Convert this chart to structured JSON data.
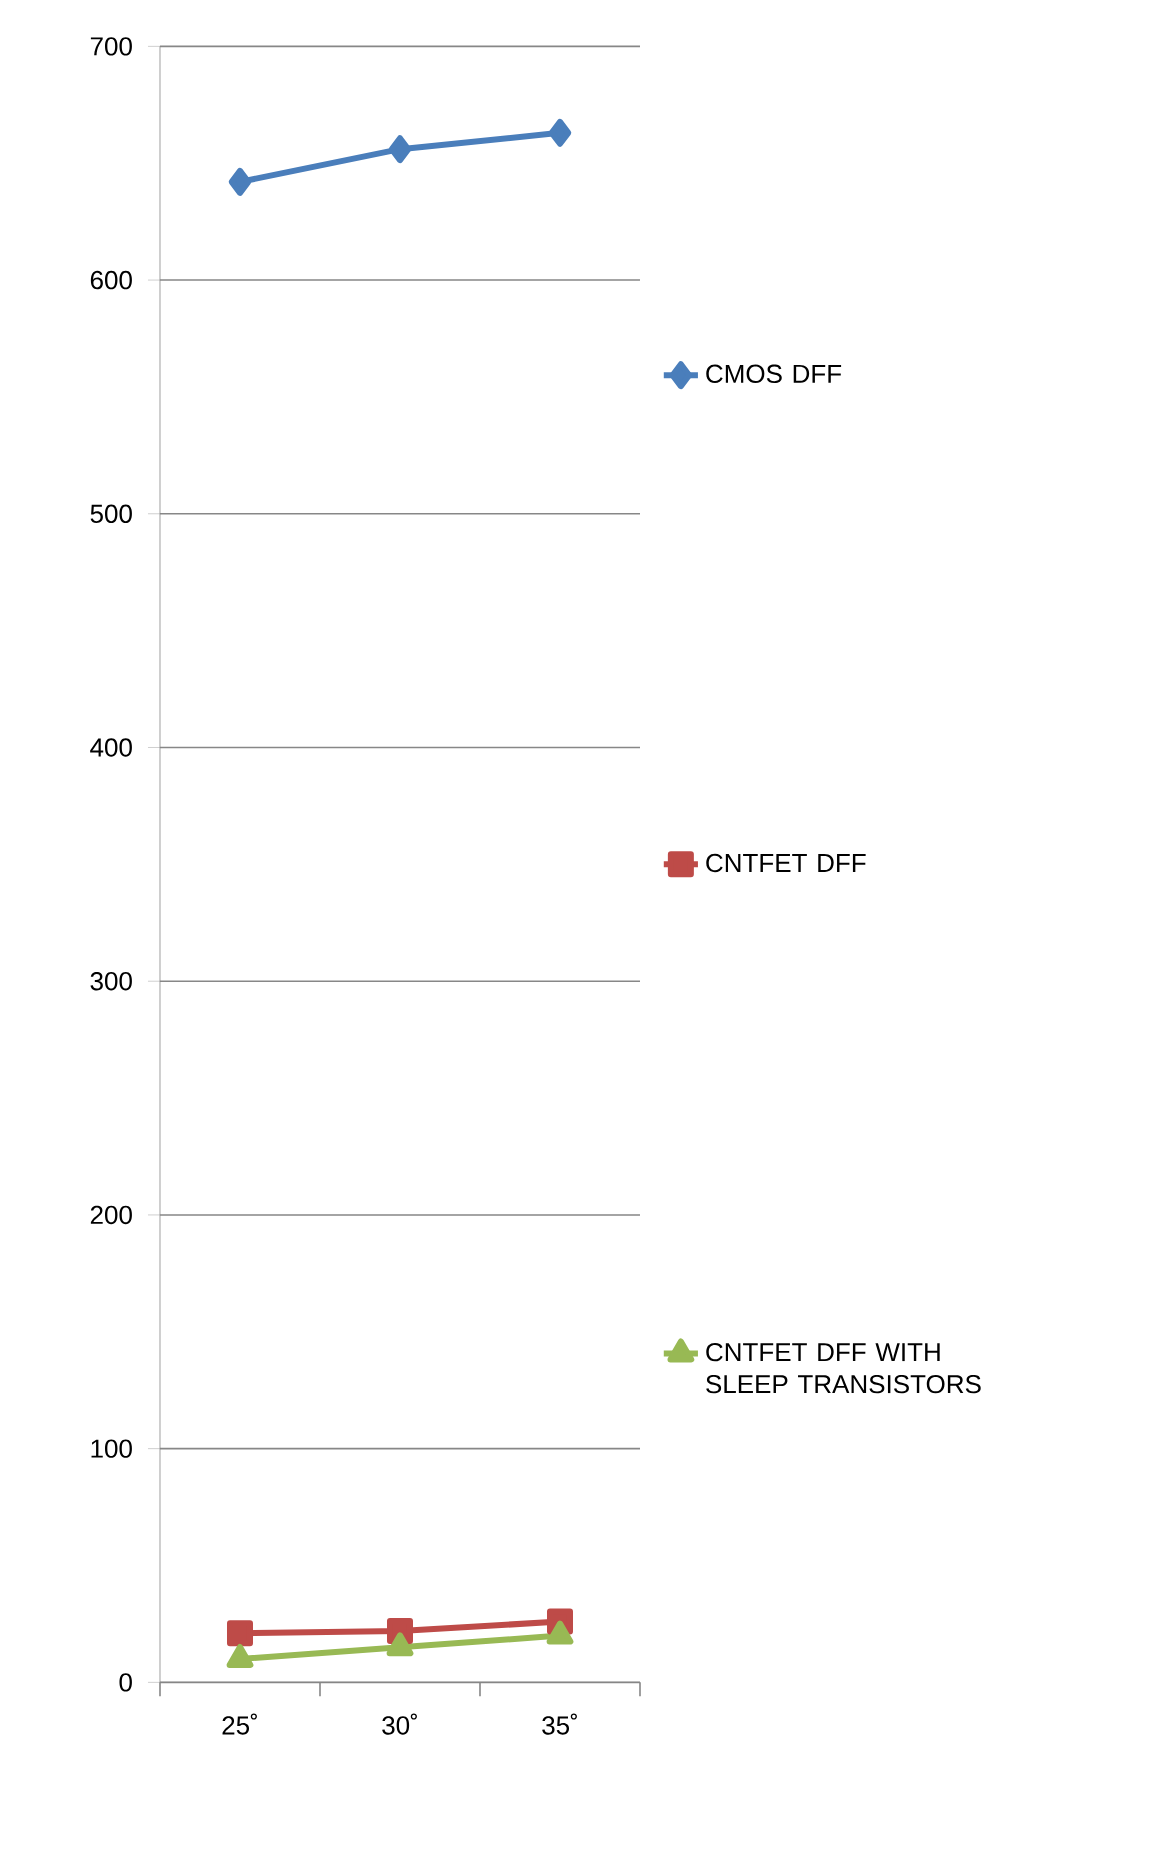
{
  "chart_data": {
    "type": "line",
    "categories": [
      "25˚",
      "30˚",
      "35˚"
    ],
    "series": [
      {
        "name": "CMOS DFF",
        "color": "#4a7ebb",
        "marker": "diamond",
        "values": [
          642,
          656,
          663
        ]
      },
      {
        "name": "CNTFET DFF",
        "color": "#be4b48",
        "marker": "square",
        "values": [
          21,
          22,
          26
        ]
      },
      {
        "name": "CNTFET DFF WITH SLEEP TRANSISTORS",
        "color": "#98b954",
        "marker": "triangle",
        "values": [
          10,
          15,
          20
        ]
      }
    ],
    "ylim": [
      0,
      700
    ],
    "yticks": [
      0,
      100,
      200,
      300,
      400,
      500,
      600,
      700
    ],
    "grid": "y",
    "legend": "right"
  }
}
